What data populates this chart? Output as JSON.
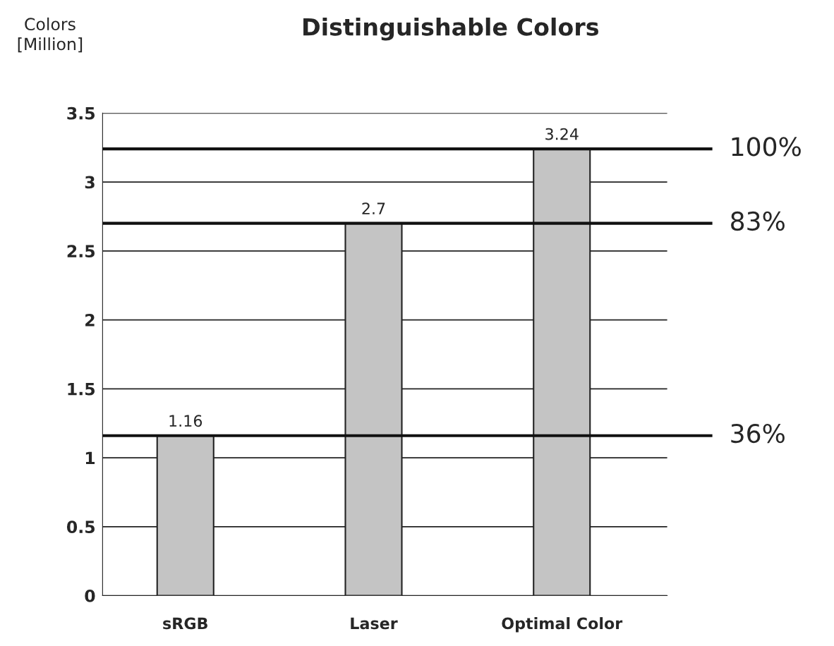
{
  "chart_data": {
    "type": "bar",
    "title": "Distinguishable Colors",
    "ylabel": "Colors\n[Million]",
    "categories": [
      "sRGB",
      "Laser",
      "Optimal Color"
    ],
    "values": [
      1.16,
      2.7,
      3.24
    ],
    "color": "#c4c4c4",
    "ylim": [
      0,
      3.5
    ],
    "yticks": [
      0,
      0.5,
      1,
      1.5,
      2,
      2.5,
      3,
      3.5
    ],
    "grid": "y",
    "data_labels": true,
    "ref_lines": [
      {
        "axis": "y",
        "value": 3.24,
        "color": "#111111"
      },
      {
        "axis": "y",
        "value": 2.7,
        "color": "#111111"
      },
      {
        "axis": "y",
        "value": 1.16,
        "color": "#111111"
      }
    ],
    "annotations": [
      "100%",
      "83%",
      "36%"
    ]
  }
}
